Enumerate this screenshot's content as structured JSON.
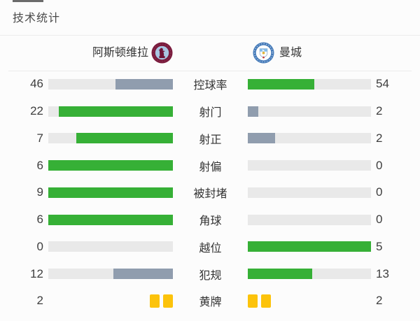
{
  "title": "技术统计",
  "header": {
    "home_team": "阿斯顿维拉",
    "away_team": "曼城"
  },
  "colors": {
    "green": "#36b036",
    "gray_blue": "#909dae",
    "track": "#e9e9e9",
    "yellow_card": "#fcc30b"
  },
  "chart_data": {
    "type": "bar",
    "title": "技术统计",
    "teams": [
      "阿斯顿维拉",
      "曼城"
    ],
    "rows": [
      {
        "label": "控球率",
        "home": 46,
        "away": 54
      },
      {
        "label": "射门",
        "home": 22,
        "away": 2
      },
      {
        "label": "射正",
        "home": 7,
        "away": 2
      },
      {
        "label": "射偏",
        "home": 6,
        "away": 0
      },
      {
        "label": "被封堵",
        "home": 9,
        "away": 0
      },
      {
        "label": "角球",
        "home": 6,
        "away": 0
      },
      {
        "label": "越位",
        "home": 0,
        "away": 5
      },
      {
        "label": "犯规",
        "home": 12,
        "away": 13
      },
      {
        "label": "黄牌",
        "home": 2,
        "away": 2,
        "type": "cards"
      }
    ]
  }
}
